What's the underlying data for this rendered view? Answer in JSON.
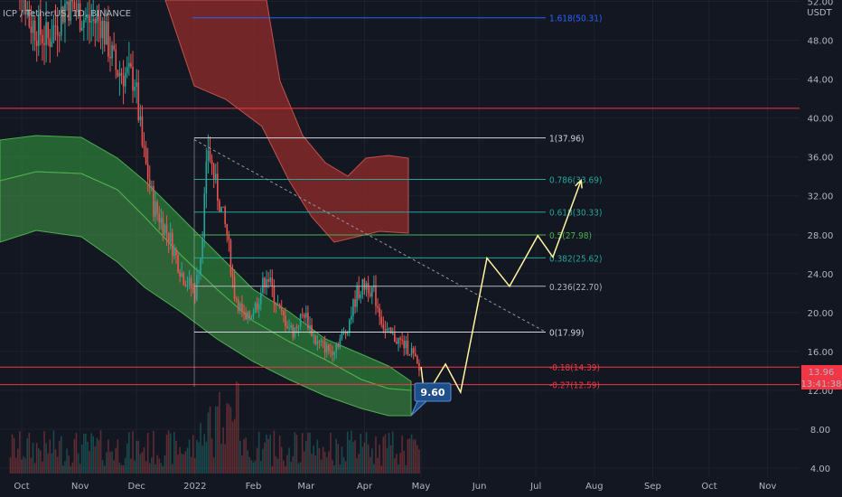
{
  "header": {
    "symbol": "ICP / TetherUS, 1D, BINANCE",
    "currency": "USDT"
  },
  "colors": {
    "background": "#131722",
    "grid": "#1e222d",
    "candle_up": "#26a69a",
    "candle_down": "#ef5350",
    "green_band": "#2e7d3a",
    "red_band": "#8b2a2a",
    "fib_white": "#d1d4dc",
    "fib_teal": "#26a69a",
    "fib_blue": "#2962ff",
    "fib_red": "#f23645",
    "projection": "#fff59d",
    "price_tag": "#f23645",
    "target_box": "#1e4f8a"
  },
  "chart_data": {
    "type": "candlestick",
    "x_ticks": [
      "Oct",
      "Nov",
      "Dec",
      "2022",
      "Feb",
      "Mar",
      "Apr",
      "May",
      "Jun",
      "Jul",
      "Aug",
      "Sep",
      "Oct",
      "Nov"
    ],
    "y_ticks": [
      "4.00",
      "8.00",
      "12.00",
      "16.00",
      "20.00",
      "24.00",
      "28.00",
      "32.00",
      "36.00",
      "40.00",
      "44.00",
      "48.00",
      "52.00"
    ],
    "ylim": [
      4,
      52
    ],
    "fib_levels": [
      {
        "label": "1.618(50.31)",
        "price": 50.31,
        "color": "#2962ff"
      },
      {
        "label": "1(37.96)",
        "price": 37.96,
        "color": "#d1d4dc"
      },
      {
        "label": "0.786(33.69)",
        "price": 33.69,
        "color": "#26a69a"
      },
      {
        "label": "0.618(30.33)",
        "price": 30.33,
        "color": "#26a69a"
      },
      {
        "label": "0.5(27.98)",
        "price": 27.98,
        "color": "#4caf50"
      },
      {
        "label": "0.382(25.62)",
        "price": 25.62,
        "color": "#26a69a"
      },
      {
        "label": "0.236(22.70)",
        "price": 22.7,
        "color": "#b2b5be"
      },
      {
        "label": "0(17.99)",
        "price": 17.99,
        "color": "#d1d4dc"
      },
      {
        "label": "-0.18(14.39)",
        "price": 14.39,
        "color": "#f23645"
      },
      {
        "label": "-0.27(12.59)",
        "price": 12.59,
        "color": "#f23645"
      }
    ],
    "horizontal_resistance": 41.0,
    "current_price": "13.96",
    "countdown": "13:41:38",
    "target_label": "9.60",
    "target_price": 9.6,
    "projection_path": [
      {
        "date": "2022-05-01",
        "price": 14.4
      },
      {
        "date": "2022-05-03",
        "price": 11.2
      },
      {
        "date": "2022-05-14",
        "price": 14.7
      },
      {
        "date": "2022-05-22",
        "price": 11.8
      },
      {
        "date": "2022-06-05",
        "price": 25.6
      },
      {
        "date": "2022-06-17",
        "price": 22.7
      },
      {
        "date": "2022-07-02",
        "price": 27.9
      },
      {
        "date": "2022-07-10",
        "price": 25.7
      },
      {
        "date": "2022-07-25",
        "price": 33.6
      }
    ]
  }
}
